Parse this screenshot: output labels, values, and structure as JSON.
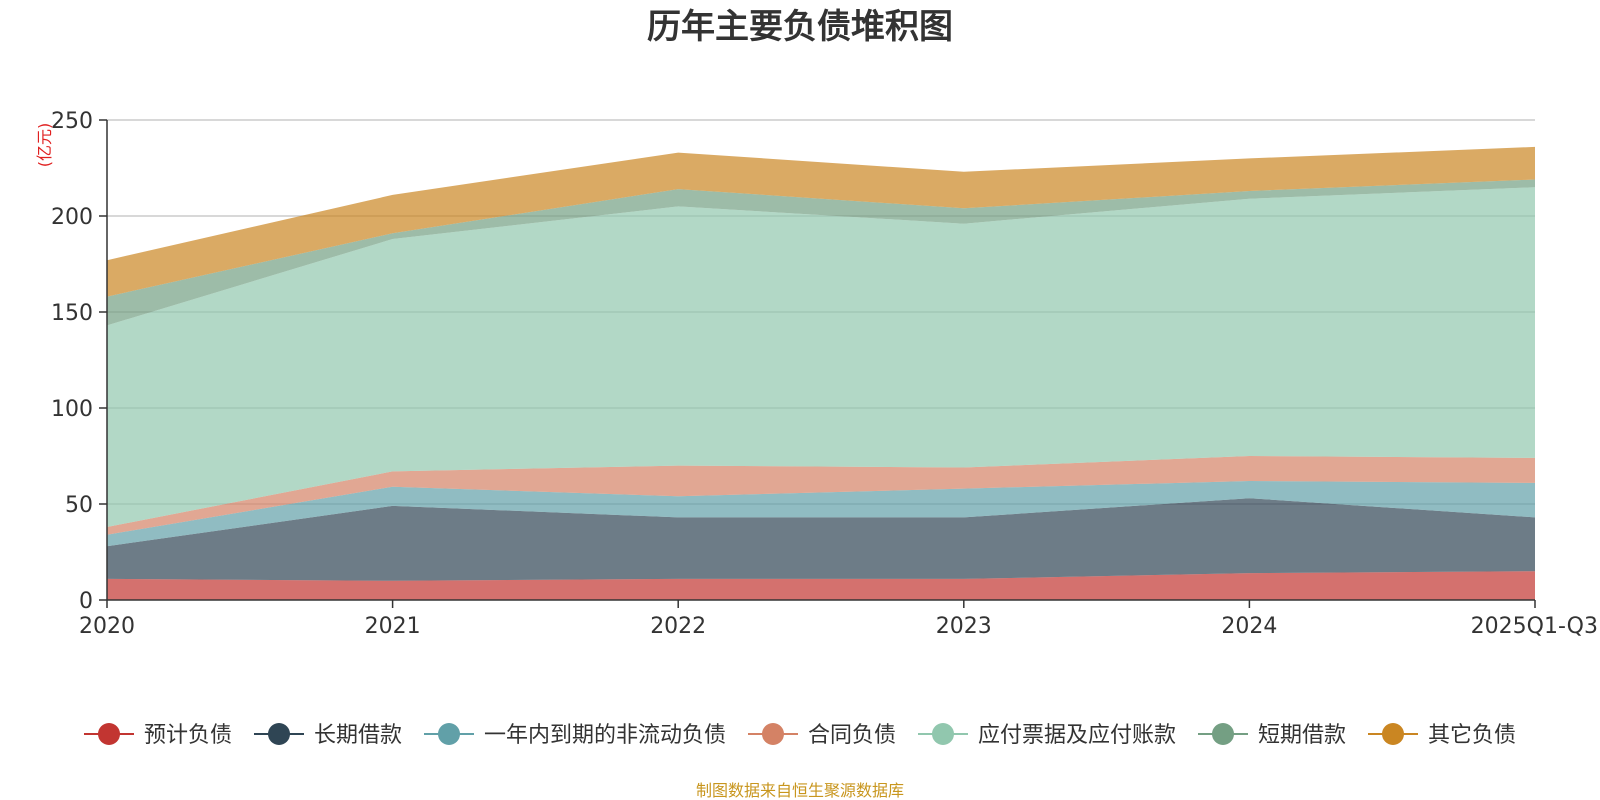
{
  "chart_data": {
    "type": "area",
    "stacked": true,
    "title": "历年主要负债堆积图",
    "ylabel": "(亿元)",
    "xlabel": "",
    "ylim": [
      0,
      250
    ],
    "yticks": [
      0,
      50,
      100,
      150,
      200,
      250
    ],
    "categories": [
      "2020",
      "2021",
      "2022",
      "2023",
      "2024",
      "2025Q1-Q3"
    ],
    "series": [
      {
        "name": "预计负债",
        "color": "#c23531",
        "values": [
          11,
          10,
          11,
          11,
          14,
          15
        ]
      },
      {
        "name": "长期借款",
        "color": "#2f4554",
        "values": [
          17,
          39,
          32,
          32,
          39,
          28
        ]
      },
      {
        "name": "一年内到期的非流动负债",
        "color": "#61a0a8",
        "values": [
          6,
          10,
          11,
          15,
          9,
          18
        ]
      },
      {
        "name": "合同负债",
        "color": "#d48265",
        "values": [
          4,
          8,
          16,
          11,
          13,
          13
        ]
      },
      {
        "name": "应付票据及应付账款",
        "color": "#91c7ae",
        "values": [
          105,
          121,
          135,
          127,
          134,
          141
        ]
      },
      {
        "name": "短期借款",
        "color": "#749f83",
        "values": [
          15,
          3,
          9,
          8,
          4,
          4
        ]
      },
      {
        "name": "其它负债",
        "color": "#ca8622",
        "values": [
          19,
          20,
          19,
          19,
          17,
          17
        ]
      }
    ],
    "legend_position": "bottom",
    "grid": true
  },
  "source_text": "制图数据来自恒生聚源数据库"
}
